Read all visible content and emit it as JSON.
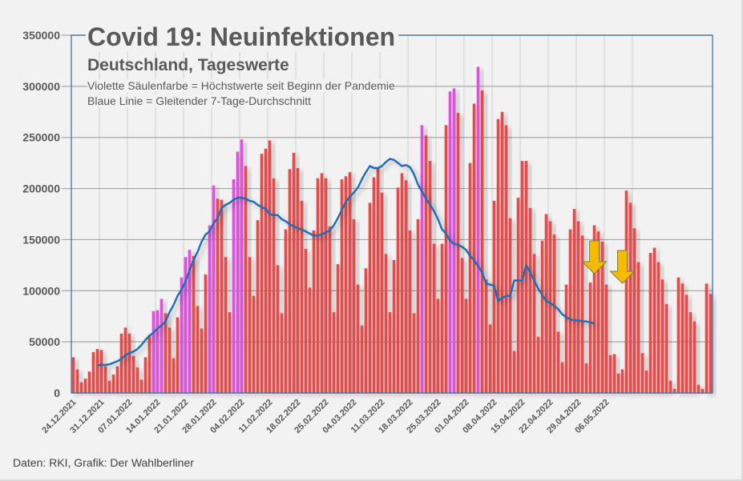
{
  "title": "Covid 19: Neuinfektionen",
  "subtitle": "Deutschland, Tageswerte",
  "legend_notes": [
    "Violette Säulenfarbe = Höchstwerte seit Beginn der Pandemie",
    "Blaue Linie = Gleitender 7-Tage-Durchschnitt"
  ],
  "footer": "Daten: RKI, Grafik: Der Wahlberliner",
  "colors": {
    "bar": "#e84848",
    "bar_record": "#e24ee2",
    "line": "#1f6db5",
    "arrow": "#f5bb00",
    "grid": "#a6a6a6",
    "border": "#2a6fa0",
    "text": "#595959"
  },
  "chart_data": {
    "type": "bar",
    "title": "Covid 19: Neuinfektionen",
    "subtitle": "Deutschland, Tageswerte",
    "xlabel": "",
    "ylabel": "",
    "ylim": [
      0,
      350000
    ],
    "yticks": [
      "0",
      "50000",
      "100000",
      "150000",
      "200000",
      "250000",
      "300000",
      "350000"
    ],
    "ytick_values": [
      0,
      50000,
      100000,
      150000,
      200000,
      250000,
      300000,
      350000
    ],
    "start_date": "24.12.2021",
    "xtick_labels": [
      "24.12.2021",
      "31.12.2021",
      "07.01.2022",
      "14.01.2022",
      "21.01.2022",
      "28.01.2022",
      "04.02.2022",
      "11.02.2022",
      "18.02.2022",
      "25.02.2022",
      "04.03.2022",
      "11.03.2022",
      "18.03.2022",
      "25.03.2022",
      "01.04.2022",
      "08.04.2022",
      "15.04.2022",
      "22.04.2022",
      "29.04.2022",
      "06.05.2022"
    ],
    "xtick_interval_days": 7,
    "grid": true,
    "series": [
      {
        "name": "Neuinfektionen (Tageswerte)",
        "type": "bar",
        "values": [
          35000,
          23000,
          10500,
          14000,
          21000,
          40000,
          43000,
          42000,
          26000,
          12000,
          18000,
          26000,
          58000,
          64000,
          58000,
          36000,
          25000,
          13000,
          35000,
          57000,
          80000,
          81000,
          92000,
          78000,
          64000,
          34000,
          74000,
          113000,
          133000,
          140000,
          134000,
          85000,
          63000,
          116000,
          164000,
          203000,
          190000,
          189000,
          133000,
          79000,
          209000,
          236000,
          248000,
          222000,
          133000,
          95000,
          169000,
          234000,
          239000,
          247000,
          210000,
          125000,
          78000,
          160000,
          219000,
          235000,
          220000,
          188000,
          141000,
          103000,
          159000,
          210000,
          215000,
          210000,
          163000,
          79000,
          126000,
          209000,
          212000,
          216000,
          170000,
          106000,
          66000,
          122000,
          186000,
          211000,
          220000,
          196000,
          136000,
          79000,
          130000,
          201000,
          215000,
          208000,
          159000,
          78000,
          170000,
          262000,
          252000,
          227000,
          146000,
          92000,
          146000,
          262000,
          295000,
          298000,
          274000,
          132000,
          92000,
          225000,
          283000,
          319000,
          296000,
          111000,
          67000,
          188000,
          268000,
          275000,
          262000,
          171000,
          41000,
          191000,
          227000,
          227000,
          181000,
          136000,
          55000,
          149000,
          175000,
          168000,
          155000,
          60000,
          30000,
          106000,
          160000,
          180000,
          168000,
          154000,
          29000,
          108000,
          164000,
          158000,
          148000,
          106000,
          37000,
          38000,
          19000,
          23000,
          198000,
          186000,
          161000,
          128000,
          39000,
          22000,
          137000,
          142000,
          128000,
          111000,
          87000,
          12000,
          4000,
          113000,
          107000,
          96000,
          79000,
          70000,
          8000,
          4000,
          107000,
          97000
        ]
      },
      {
        "name": "Gleitender 7-Tage-Durchschnitt",
        "type": "line",
        "start_index": 6,
        "values": [
          27000,
          27500,
          27500,
          28000,
          29500,
          31000,
          33500,
          37000,
          39000,
          40500,
          43000,
          47000,
          52000,
          56000,
          59000,
          63000,
          66000,
          70000,
          79000,
          86000,
          95000,
          101000,
          109000,
          120000,
          130000,
          138000,
          148000,
          155000,
          158000,
          166000,
          171000,
          181000,
          184000,
          186000,
          189000,
          191000,
          191000,
          190000,
          188000,
          187000,
          184000,
          182000,
          180000,
          175000,
          174000,
          174000,
          170000,
          168000,
          165000,
          163000,
          161000,
          160000,
          158000,
          156000,
          154000,
          154000,
          155000,
          157000,
          159000,
          164000,
          171000,
          179000,
          187000,
          192000,
          196000,
          201000,
          209000,
          216000,
          222000,
          220000,
          220000,
          222000,
          226000,
          229000,
          228000,
          225000,
          222000,
          223000,
          221000,
          214000,
          204000,
          197000,
          190000,
          184000,
          178000,
          170000,
          160000,
          156000,
          149000,
          146000,
          145000,
          143000,
          140000,
          134000,
          130000,
          124000,
          118000,
          107000,
          106000,
          105000,
          90000,
          93000,
          95000,
          95000,
          110000,
          110000,
          110000,
          125000,
          118000,
          110000,
          102000,
          96000,
          90000,
          88000,
          85000,
          82000,
          77000,
          74000,
          72000,
          71000,
          71000,
          70000,
          70000,
          69000,
          68000
        ]
      }
    ],
    "record_days_legend": "Violette Säulenfarbe = Höchstwerte seit Beginn der Pandemie",
    "record_indices": [
      20,
      21,
      22,
      27,
      28,
      29,
      34,
      35,
      40,
      41,
      42,
      87,
      94,
      95,
      101
    ],
    "annotations": [
      {
        "type": "arrow-down",
        "at_date_index": 130
      },
      {
        "type": "arrow-down",
        "at_date_index": 137
      }
    ]
  }
}
